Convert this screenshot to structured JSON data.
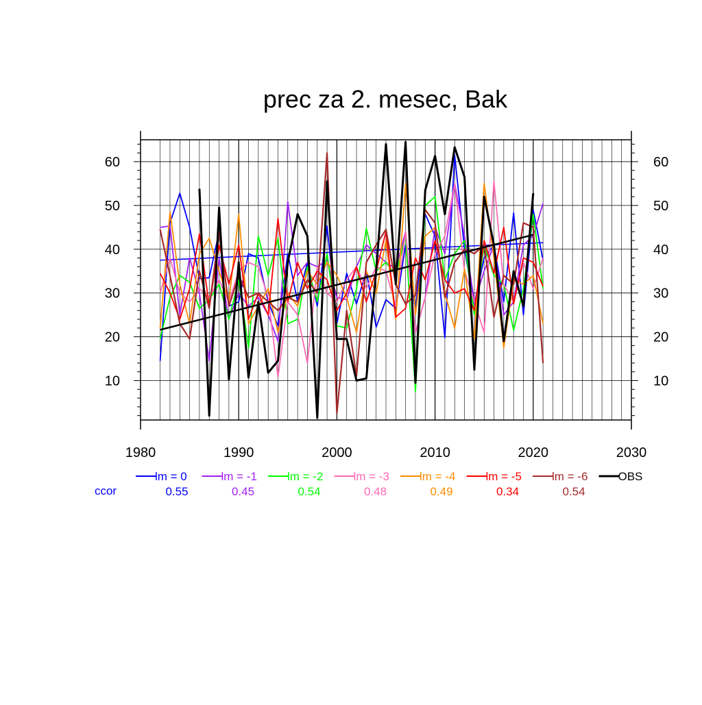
{
  "chart_data": {
    "type": "line",
    "title": "prec za 2. mesec, Bak",
    "xlabel": "",
    "ylabel": "",
    "xlim": [
      1980,
      2030
    ],
    "ylim": [
      1,
      65
    ],
    "x_ticks": [
      1980,
      1990,
      2000,
      2010,
      2020,
      2030
    ],
    "y_ticks": [
      10,
      20,
      30,
      40,
      50,
      60
    ],
    "grid": true,
    "legend_position": "bottom",
    "x": [
      1982,
      1983,
      1984,
      1985,
      1986,
      1987,
      1988,
      1989,
      1990,
      1991,
      1992,
      1993,
      1994,
      1995,
      1996,
      1997,
      1998,
      1999,
      2000,
      2001,
      2002,
      2003,
      2004,
      2005,
      2006,
      2007,
      2008,
      2009,
      2010,
      2011,
      2012,
      2013,
      2014,
      2015,
      2016,
      2017,
      2018,
      2019,
      2020,
      2021
    ],
    "series": [
      {
        "name": "lm = 0",
        "color": "#0000ff",
        "ccor": "0.55",
        "width": 1.8,
        "values": [
          14.5,
          46,
          52.8,
          45,
          33.3,
          33.5,
          44,
          27,
          28,
          39,
          38,
          28,
          22.5,
          39,
          28,
          37,
          27,
          45.3,
          23,
          34.5,
          27.5,
          35,
          22.2,
          28.5,
          26.5,
          41,
          26,
          48,
          43,
          19.8,
          61.5,
          40,
          27.5,
          38,
          41,
          28,
          48.3,
          25,
          49,
          37.5
        ],
        "trend": [
          37.5,
          41.5
        ]
      },
      {
        "name": "lm = -1",
        "color": "#a020f0",
        "ccor": "0.45",
        "width": 1.8,
        "values": [
          45,
          45.3,
          25,
          38,
          30,
          14.5,
          38,
          24,
          30,
          27,
          29,
          25,
          19,
          50.8,
          34,
          37,
          36,
          37.5,
          29,
          28.5,
          36,
          41,
          39,
          37,
          35.5,
          44,
          21,
          29,
          45,
          39,
          55,
          43,
          28,
          35,
          41,
          25,
          28,
          41,
          43,
          50.5
        ]
      },
      {
        "name": "lm = -2",
        "color": "#00ff00",
        "ccor": "0.54",
        "width": 1.8,
        "values": [
          19.5,
          29,
          34,
          32.5,
          26.5,
          28.5,
          32,
          24,
          33,
          17.5,
          43,
          34,
          42.5,
          23,
          24,
          36,
          28,
          39,
          22.5,
          22,
          31,
          44.8,
          35,
          37,
          34,
          43,
          7.5,
          50,
          52,
          33,
          39,
          42,
          25,
          41,
          34,
          32,
          21.5,
          31,
          48,
          31
        ]
      },
      {
        "name": "lm = -3",
        "color": "#ff69b4",
        "ccor": "0.48",
        "width": 1.8,
        "values": [
          30,
          38,
          30,
          28,
          31,
          29,
          33,
          28,
          35,
          37,
          36,
          29,
          10.8,
          28,
          25,
          14,
          36,
          30,
          28,
          33,
          36,
          31,
          36,
          35,
          27,
          44,
          21,
          29,
          39,
          43,
          55,
          35,
          28,
          21,
          55.5,
          32,
          28,
          37,
          31,
          38
        ]
      },
      {
        "name": "lm = -4",
        "color": "#ff8c00",
        "ccor": "0.49",
        "width": 1.8,
        "values": [
          22,
          48.5,
          32,
          23,
          39,
          42.5,
          35,
          28,
          48,
          23,
          27,
          31,
          21,
          30,
          27,
          35,
          32,
          37,
          34,
          29,
          21,
          35,
          30,
          42,
          24,
          55,
          25,
          43,
          45,
          30,
          22,
          35.5,
          19.5,
          55,
          38,
          17.5,
          33,
          32,
          34,
          23
        ]
      },
      {
        "name": "lm = -5",
        "color": "#ff0000",
        "ccor": "0.34",
        "width": 1.8,
        "values": [
          34.5,
          30,
          24,
          31,
          43.5,
          27,
          41,
          32,
          41,
          24,
          30,
          25,
          47,
          28,
          37,
          31,
          35,
          33,
          26,
          30,
          36,
          28,
          35,
          44,
          24.5,
          26.5,
          38,
          33,
          42,
          33,
          30,
          31,
          26,
          42,
          34.5,
          45,
          27.5,
          38,
          37,
          31.5
        ]
      },
      {
        "name": "lm = -6",
        "color": "#a52a2a",
        "ccor": "0.54",
        "width": 2.2,
        "values": [
          44.5,
          34,
          23,
          19.5,
          35,
          26.5,
          44,
          27,
          34,
          29,
          30,
          28,
          26,
          29,
          28,
          33,
          30,
          62,
          2.5,
          26,
          11,
          37,
          41,
          44.5,
          32,
          27.5,
          29.5,
          49,
          46,
          29,
          37,
          40,
          39,
          41,
          24.5,
          34,
          32,
          46,
          45,
          14
        ]
      },
      {
        "name": "OBS",
        "color": "#000000",
        "ccor": "",
        "width": 3,
        "x": [
          1986,
          1987,
          1988,
          1989,
          1990,
          1991,
          1992,
          1993,
          1994,
          1995,
          1996,
          1997,
          1998,
          1999,
          2000,
          2001,
          2002,
          2003,
          2004,
          2005,
          2006,
          2007,
          2008,
          2009,
          2010,
          2011,
          2012,
          2013,
          2014,
          2015,
          2016,
          2017,
          2018,
          2019,
          2020
        ],
        "values": [
          53.8,
          2,
          49.5,
          10.3,
          37,
          10.7,
          28,
          11.8,
          14.5,
          37,
          48,
          43,
          1.5,
          55.5,
          19.5,
          19.5,
          10,
          10.5,
          35,
          64,
          32,
          64.5,
          9.5,
          53.5,
          61.3,
          48,
          63.3,
          56.5,
          12.5,
          52,
          41,
          19,
          35,
          27,
          52.8
        ],
        "trend_x": [
          1982,
          2020
        ],
        "trend": [
          21.6,
          43.3
        ]
      }
    ],
    "legend_label": "ccor"
  }
}
